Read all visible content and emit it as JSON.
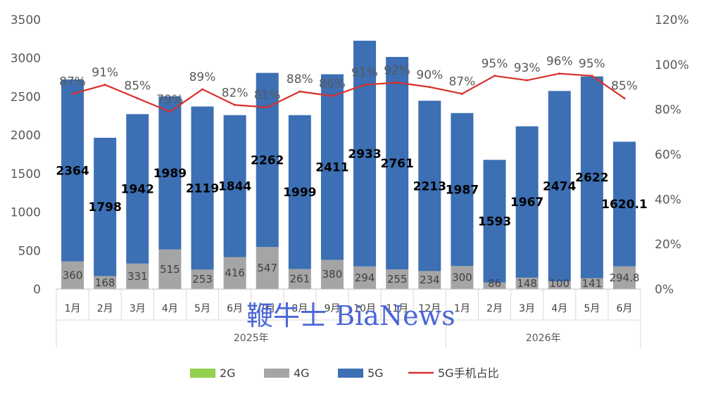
{
  "chart_data": {
    "type": "bar",
    "stacked": true,
    "categories": [
      "1月",
      "2月",
      "3月",
      "4月",
      "5月",
      "6月",
      "7月",
      "8月",
      "9月",
      "10月",
      "11月",
      "12月",
      "1月",
      "2月",
      "3月",
      "4月",
      "5月",
      "6月"
    ],
    "year_groups": [
      {
        "label": "2025年",
        "count": 12
      },
      {
        "label": "2026年",
        "count": 6
      }
    ],
    "series": [
      {
        "name": "2G",
        "color": "#92d050",
        "values": [
          0,
          0,
          0,
          0,
          0,
          0,
          0,
          0,
          0,
          0,
          0,
          0,
          0,
          0,
          0,
          0,
          0,
          0
        ],
        "labels": []
      },
      {
        "name": "4G",
        "color": "#a5a5a5",
        "values": [
          360,
          168,
          331,
          515,
          253,
          416,
          547,
          261,
          380,
          294,
          255,
          234,
          300,
          86,
          148,
          100,
          141,
          294.8
        ],
        "labels": [
          "360",
          "168",
          "331",
          "515",
          "253",
          "416",
          "547",
          "261",
          "380",
          "294",
          "255",
          "234",
          "300",
          "86",
          "148",
          "100",
          "141",
          "294.8"
        ]
      },
      {
        "name": "5G",
        "color": "#3c6fb3",
        "values": [
          2364,
          1798,
          1942,
          1989,
          2119,
          1844,
          2262,
          1999,
          2411,
          2933,
          2761,
          2213,
          1987,
          1593,
          1967,
          2474,
          2622,
          1620.1
        ],
        "labels": [
          "2364",
          "1798",
          "1942",
          "1989",
          "2119",
          "1844",
          "2262",
          "1999",
          "2411",
          "2933",
          "2761",
          "2213",
          "1987",
          "1593",
          "1967",
          "2474",
          "2622",
          "1620.1"
        ]
      }
    ],
    "line_series": {
      "name": "5G手机占比",
      "color": "#d9302c",
      "axis": "right",
      "values": [
        87,
        91,
        85,
        79,
        89,
        82,
        81,
        88,
        86,
        91,
        92,
        90,
        87,
        95,
        93,
        96,
        95,
        85
      ],
      "labels": [
        "87%",
        "91%",
        "85%",
        "79%",
        "89%",
        "82%",
        "81%",
        "88%",
        "86%",
        "91%",
        "92%",
        "90%",
        "87%",
        "95%",
        "93%",
        "96%",
        "95%",
        "85%"
      ]
    },
    "left_axis": {
      "min": 0,
      "max": 3500,
      "ticks": [
        "0",
        "500",
        "1000",
        "1500",
        "2000",
        "2500",
        "3000",
        "3500"
      ]
    },
    "right_axis": {
      "min": 0,
      "max": 120,
      "ticks": [
        "0%",
        "20%",
        "40%",
        "60%",
        "80%",
        "100%",
        "120%"
      ]
    },
    "legend": {
      "placement": "bottom",
      "items": [
        "2G",
        "4G",
        "5G",
        "5G手机占比"
      ]
    },
    "grid": false
  },
  "watermark": {
    "text": "鞭牛士 BiaNews",
    "color": "#4a66d6"
  }
}
